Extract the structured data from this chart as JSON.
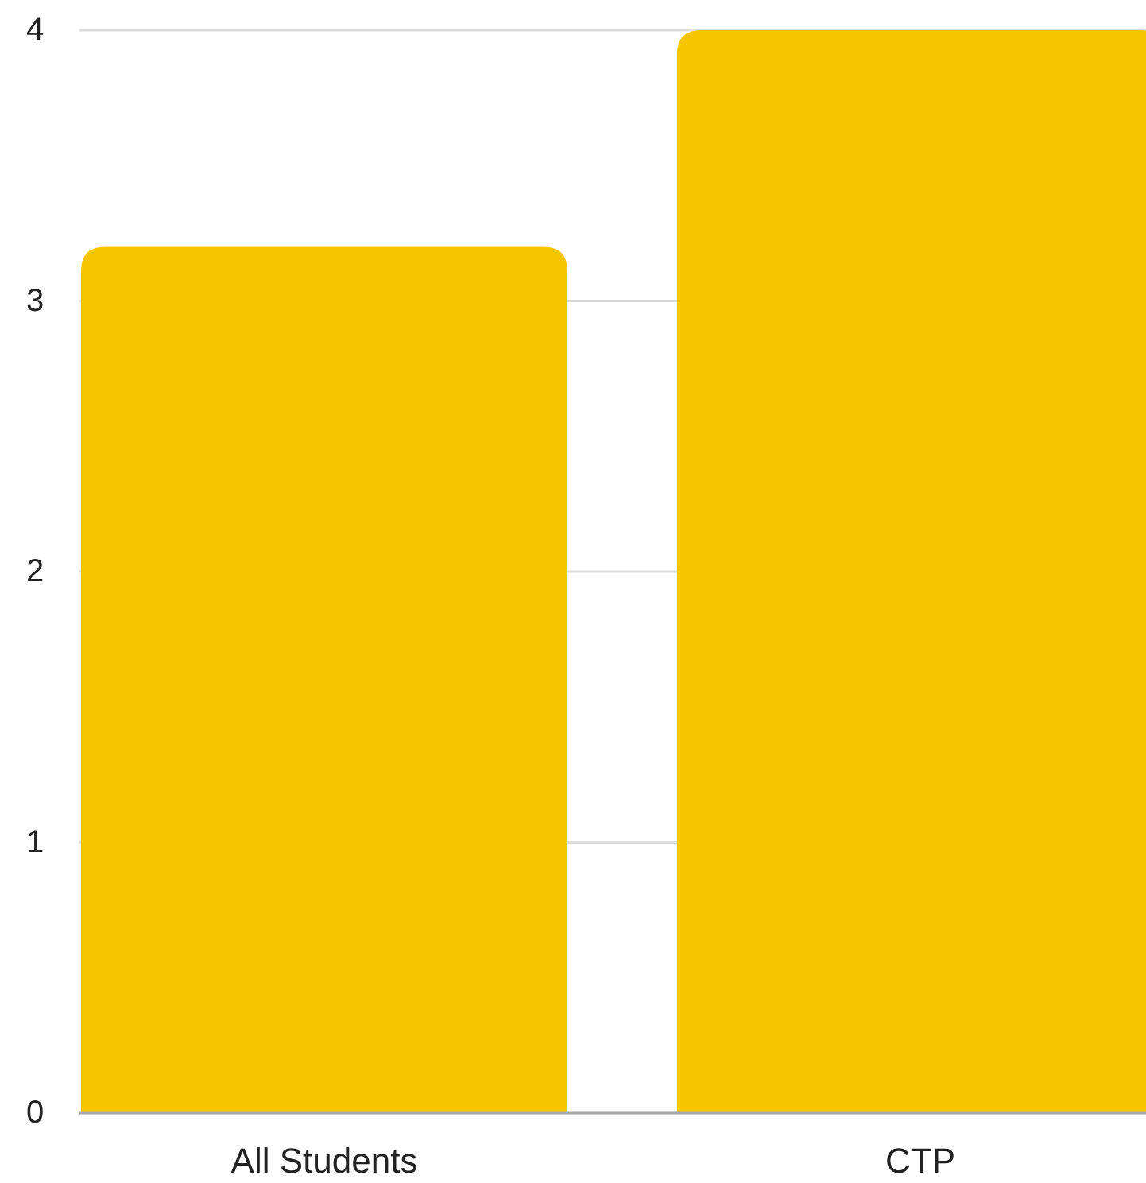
{
  "chart_data": {
    "type": "bar",
    "categories": [
      "All Students",
      "CTP"
    ],
    "values": [
      3.2,
      4
    ],
    "color": "#f8c600",
    "ylim": [
      0,
      4
    ],
    "yticks": [
      0,
      1,
      2,
      3,
      4
    ],
    "grid": "y"
  }
}
